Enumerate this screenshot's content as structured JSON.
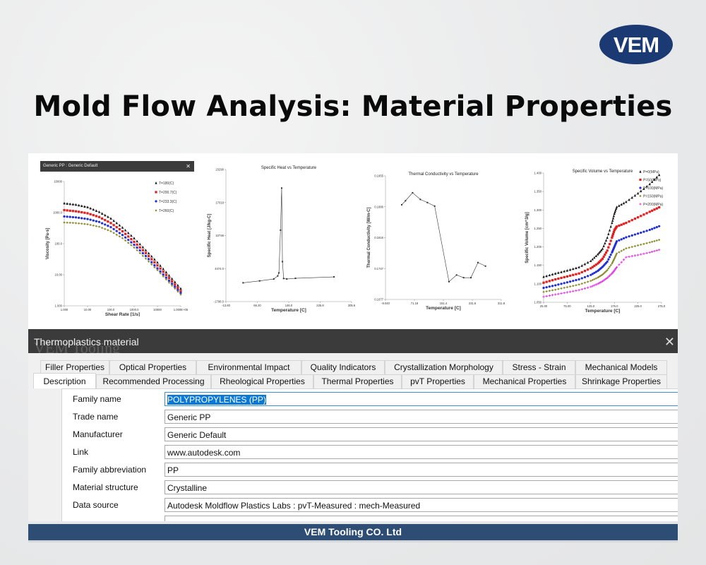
{
  "brand": {
    "logo_text": "VEM",
    "colors": {
      "logo_blue": "#1b3a73",
      "footer_blue": "#2d4d75"
    }
  },
  "page_title": "Mold Flow Analysis: Material Properties",
  "viscosity_window_title": "Generic PP : Generic Default",
  "chart_data": [
    {
      "type": "scatter",
      "title": "",
      "xlabel": "Shear Rate [1/s]",
      "ylabel": "Viscosity [Pa-s]",
      "xscale": "log",
      "yscale": "log",
      "xlim": [
        1,
        100000
      ],
      "ylim": [
        1,
        10000
      ],
      "xticks": [
        "1.000",
        "10.00",
        "100.0",
        "1000.0",
        "10000",
        "1.000E+05"
      ],
      "yticks": [
        "1.000",
        "10.00",
        "100.0",
        "1000.0",
        "10000"
      ],
      "legend": "top-right",
      "x": [
        1,
        3.16,
        10,
        31.6,
        100,
        316,
        1000,
        3162,
        10000,
        31623,
        100000
      ],
      "series": [
        {
          "name": "T=180(C)",
          "color": "#111111",
          "marker": "triangle",
          "values": [
            2000,
            1800,
            1500,
            1050,
            650,
            330,
            150,
            62,
            25,
            9.5,
            3.6
          ]
        },
        {
          "name": "T=200.7(C)",
          "color": "#e02020",
          "marker": "square",
          "values": [
            1200,
            1100,
            950,
            720,
            460,
            250,
            115,
            50,
            20,
            7.8,
            3.0
          ]
        },
        {
          "name": "T=233.3(C)",
          "color": "#2030d0",
          "marker": "circle",
          "values": [
            750,
            700,
            620,
            500,
            340,
            190,
            92,
            40,
            16,
            6.4,
            2.6
          ]
        },
        {
          "name": "T=260(C)",
          "color": "#8a8a2a",
          "marker": "diamond",
          "values": [
            480,
            460,
            420,
            350,
            250,
            150,
            75,
            33,
            14,
            5.6,
            2.3
          ]
        }
      ]
    },
    {
      "type": "line",
      "title": "Specific Heat vs Temperature",
      "xlabel": "Temperature [C]",
      "ylabel": "Specific Heat [J/kg-C]",
      "xlim": [
        -13.6,
        305.6
      ],
      "ylim": [
        -1798,
        23290
      ],
      "xticks": [
        "-13.60",
        "66.20",
        "146.0",
        "225.8",
        "305.6"
      ],
      "yticks": [
        "-1798.0",
        "4474.0",
        "10746",
        "17018",
        "23290"
      ],
      "series": [
        {
          "color": "#333333",
          "x": [
            30,
            72,
            108,
            118,
            121,
            125,
            128,
            130,
            133,
            141,
            163,
            261
          ],
          "values": [
            1770,
            2130,
            2490,
            3070,
            3650,
            11770,
            19760,
            5790,
            2580,
            2490,
            2620,
            2890
          ]
        }
      ]
    },
    {
      "type": "line",
      "title": "Thermal Conductivity vs Temperature",
      "xlabel": "Temperature [C]",
      "ylabel": "Thermal Conductivity [W/m-C]",
      "xlim": [
        -9.04,
        311.8
      ],
      "ylim": [
        0.1677,
        0.1955
      ],
      "xticks": [
        "-9.040",
        "71.18",
        "151.4",
        "231.6",
        "311.8"
      ],
      "yticks": [
        "0.1677",
        "0.1747",
        "0.1816",
        "0.1886",
        "0.1955"
      ],
      "series": [
        {
          "color": "#333333",
          "x": [
            36,
            46.4,
            66,
            87.5,
            107,
            127.2,
            167,
            188,
            207.5,
            227.7,
            247.2,
            268
          ],
          "values": [
            0.189,
            0.1899,
            0.1917,
            0.1902,
            0.1895,
            0.1887,
            0.1717,
            0.1732,
            0.1726,
            0.1726,
            0.176,
            0.1752
          ]
        }
      ]
    },
    {
      "type": "scatter",
      "title": "Specific Volume vs Temperature",
      "xlabel": "Temperature [C]",
      "ylabel": "Specific Volume [cm^3/g]",
      "xlim": [
        25,
        275
      ],
      "ylim": [
        1.05,
        1.4
      ],
      "xticks": [
        "25.00",
        "75.00",
        "125.0",
        "175.0",
        "225.0",
        "275.0"
      ],
      "yticks": [
        "1.050",
        "1.100",
        "1.150",
        "1.200",
        "1.250",
        "1.300",
        "1.350",
        "1.400"
      ],
      "legend": "top-right",
      "x": [
        25,
        50,
        75,
        100,
        125,
        140,
        150,
        160,
        170,
        175,
        180,
        200,
        225,
        250,
        270
      ],
      "series": [
        {
          "name": "P=0(MPa)",
          "color": "#111111",
          "marker": "triangle",
          "values": [
            1.119,
            1.128,
            1.136,
            1.145,
            1.162,
            1.18,
            1.195,
            1.225,
            1.265,
            1.29,
            1.308,
            1.322,
            1.345,
            1.37,
            1.395
          ]
        },
        {
          "name": "P=50(MPa)",
          "color": "#e02020",
          "marker": "square",
          "values": [
            1.103,
            1.112,
            1.12,
            1.128,
            1.142,
            1.155,
            1.168,
            1.19,
            1.225,
            1.245,
            1.255,
            1.265,
            1.28,
            1.295,
            1.307
          ]
        },
        {
          "name": "P=100(MPa)",
          "color": "#2030d0",
          "marker": "circle",
          "values": [
            1.089,
            1.096,
            1.104,
            1.112,
            1.124,
            1.135,
            1.146,
            1.16,
            1.185,
            1.2,
            1.215,
            1.226,
            1.236,
            1.246,
            1.256
          ]
        },
        {
          "name": "P=150(MPa)",
          "color": "#8a8a2a",
          "marker": "diamond",
          "values": [
            1.078,
            1.084,
            1.091,
            1.098,
            1.108,
            1.117,
            1.125,
            1.137,
            1.155,
            1.168,
            1.182,
            1.196,
            1.204,
            1.212,
            1.219
          ]
        },
        {
          "name": "P=200(MPa)",
          "color": "#e040e0",
          "marker": "cross",
          "values": [
            1.065,
            1.071,
            1.077,
            1.083,
            1.092,
            1.1,
            1.107,
            1.116,
            1.128,
            1.136,
            1.145,
            1.172,
            1.178,
            1.185,
            1.192
          ]
        }
      ]
    }
  ],
  "dialog": {
    "title": "Thermoplastics material",
    "watermark": "VEM Tooling",
    "close_icon": "close-icon",
    "tabs_row1": [
      "Filler Properties",
      "Optical Properties",
      "Environmental Impact",
      "Quality Indicators",
      "Crystallization Morphology",
      "Stress - Strain",
      "Mechanical Models"
    ],
    "tabs_row2": [
      "Description",
      "Recommended Processing",
      "Rheological Properties",
      "Thermal Properties",
      "pvT Properties",
      "Mechanical Properties",
      "Shrinkage Properties"
    ],
    "selected_tab": "Description",
    "fields": [
      {
        "label": "Family name",
        "value": "POLYPROPYLENES (PP)"
      },
      {
        "label": "Trade name",
        "value": "Generic PP"
      },
      {
        "label": "Manufacturer",
        "value": "Generic Default"
      },
      {
        "label": "Link",
        "value": "www.autodesk.com"
      },
      {
        "label": "Family abbreviation",
        "value": "PP"
      },
      {
        "label": "Material structure",
        "value": "Crystalline"
      },
      {
        "label": "Data source",
        "value": "Autodesk Moldflow Plastics Labs : pvT-Measured : mech-Measured"
      },
      {
        "label": "",
        "value": ""
      }
    ]
  },
  "footer": "VEM Tooling CO. Ltd"
}
